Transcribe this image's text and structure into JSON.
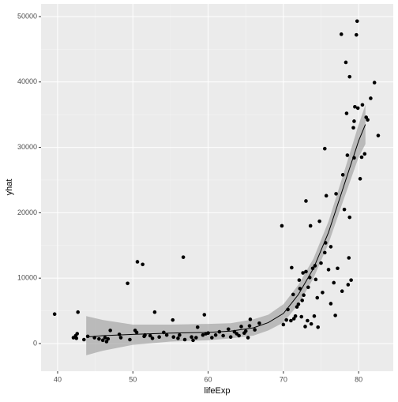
{
  "chart_data": {
    "type": "scatter",
    "x_label": "lifeExp",
    "y_label": "yhat",
    "xlim": [
      37.8,
      84.6
    ],
    "xticks": [
      40,
      50,
      60,
      70,
      80
    ],
    "ylim": [
      -4230,
      51930
    ],
    "yticks": [
      0,
      10000,
      20000,
      30000,
      40000,
      50000
    ],
    "grid": true,
    "minor_grid": true,
    "color": "#000000",
    "background": "#ebebeb",
    "x": [
      39.6,
      42.1,
      42.4,
      42.6,
      42.7,
      42.5,
      43.5,
      44.0,
      44.9,
      45.5,
      46.0,
      46.3,
      46.5,
      46.7,
      47.0,
      48.2,
      48.4,
      49.3,
      49.6,
      50.3,
      50.5,
      50.6,
      51.3,
      51.5,
      51.6,
      52.3,
      52.9,
      52.6,
      53.5,
      54.1,
      54.5,
      55.3,
      55.4,
      56.0,
      56.2,
      56.7,
      56.9,
      57.8,
      58.0,
      58.4,
      58.6,
      59.3,
      59.5,
      59.7,
      60.0,
      60.5,
      61.0,
      61.5,
      62.0,
      62.7,
      63.0,
      63.5,
      63.8,
      64.1,
      64.4,
      64.8,
      65.0,
      65.3,
      65.5,
      65.6,
      66.2,
      66.8,
      69.8,
      70.0,
      70.4,
      70.6,
      71.0,
      71.1,
      71.3,
      71.4,
      71.6,
      71.8,
      72.0,
      72.1,
      72.2,
      72.4,
      72.5,
      72.6,
      72.7,
      72.9,
      73.0,
      73.0,
      73.2,
      73.3,
      73.5,
      73.6,
      73.7,
      73.9,
      74.1,
      74.2,
      74.3,
      74.5,
      74.6,
      74.8,
      75.0,
      75.2,
      75.5,
      75.5,
      75.6,
      75.7,
      76.0,
      76.3,
      76.3,
      76.7,
      76.9,
      77.0,
      77.2,
      77.7,
      77.8,
      77.9,
      78.1,
      78.3,
      78.4,
      78.5,
      78.6,
      78.7,
      78.8,
      78.8,
      79.0,
      79.3,
      79.4,
      79.5,
      79.4,
      79.8,
      79.9,
      79.7,
      80.2,
      80.4,
      80.5,
      80.8,
      81.0,
      81.2,
      81.6,
      82.1,
      82.6
    ],
    "values": [
      4500,
      900,
      1200,
      1500,
      4800,
      800,
      600,
      1100,
      900,
      700,
      500,
      900,
      300,
      700,
      2000,
      1400,
      900,
      9200,
      600,
      2000,
      1700,
      12500,
      12100,
      1100,
      1300,
      1200,
      4800,
      800,
      1000,
      1700,
      1300,
      3600,
      1000,
      800,
      1300,
      13200,
      600,
      1000,
      500,
      900,
      2500,
      1300,
      4400,
      1500,
      1600,
      900,
      1300,
      1800,
      1200,
      2200,
      1000,
      1800,
      1500,
      1200,
      2600,
      1600,
      1900,
      900,
      2700,
      3700,
      2100,
      3100,
      18000,
      2900,
      3600,
      5200,
      3500,
      11600,
      7500,
      3800,
      4200,
      5600,
      6000,
      9700,
      8400,
      4100,
      6600,
      10800,
      7400,
      2600,
      11000,
      21800,
      3500,
      8600,
      10100,
      18000,
      3000,
      11500,
      4200,
      11900,
      9800,
      7000,
      2500,
      18700,
      12300,
      7800,
      13900,
      29800,
      15400,
      22600,
      11300,
      14800,
      6100,
      9300,
      4300,
      22900,
      11500,
      47300,
      8000,
      25800,
      20500,
      43000,
      35200,
      28800,
      9000,
      13100,
      40800,
      19300,
      9700,
      33000,
      34000,
      36200,
      28400,
      49300,
      36000,
      47200,
      25200,
      28500,
      36500,
      29000,
      34600,
      34200,
      37500,
      39900,
      31800
    ],
    "smooth": {
      "color": "#000000",
      "band_color": "#999999",
      "x": [
        43.8,
        46,
        50,
        55,
        60,
        63,
        66,
        68,
        70,
        72,
        74,
        76,
        78,
        80,
        80.9
      ],
      "values": [
        1000,
        1200,
        1400,
        1600,
        1700,
        1900,
        2400,
        3200,
        4600,
        7500,
        11500,
        17000,
        24000,
        31000,
        33500
      ],
      "lower": [
        -1800,
        -1100,
        -200,
        300,
        500,
        800,
        1200,
        2000,
        3200,
        6000,
        10000,
        15300,
        22000,
        28500,
        30500
      ],
      "upper": [
        4200,
        3600,
        2900,
        2900,
        3000,
        3100,
        3700,
        4400,
        6000,
        9000,
        13000,
        18700,
        26000,
        33500,
        36500
      ]
    }
  }
}
